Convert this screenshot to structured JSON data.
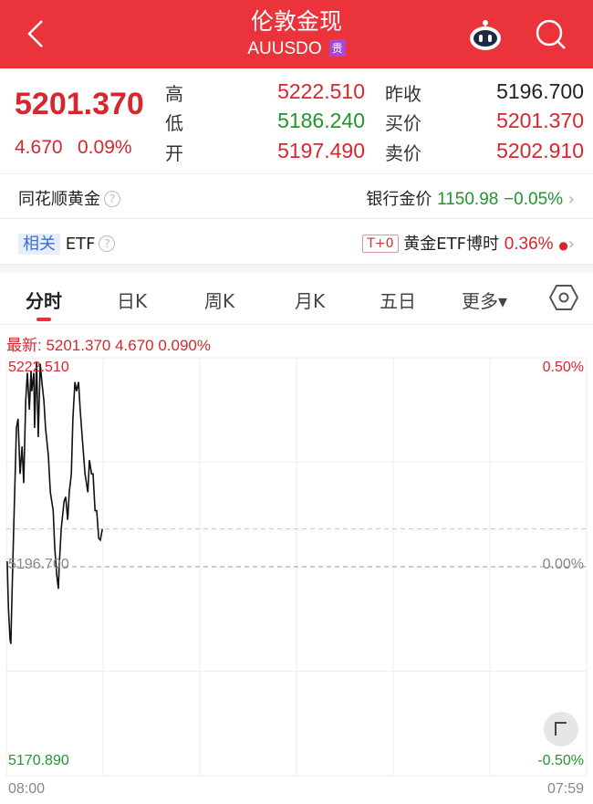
{
  "header": {
    "title": "伦敦金现",
    "code": "AUUSDO",
    "badge": "贵",
    "back_icon": "chevron-left-icon",
    "robot_icon": "robot-assistant-icon",
    "search_icon": "search-icon",
    "bg": "#ea333b"
  },
  "quote": {
    "price": "5201.370",
    "change": "4.670",
    "change_pct": "0.09%",
    "high_label": "高",
    "high": "5222.510",
    "low_label": "低",
    "low": "5186.240",
    "open_label": "开",
    "open": "5197.490",
    "prev_close_label": "昨收",
    "prev_close": "5196.700",
    "bid_label": "买价",
    "bid": "5201.370",
    "ask_label": "卖价",
    "ask": "5202.910"
  },
  "gold_row": {
    "label": "同花顺黄金",
    "help": "?",
    "bank_label": "银行金价",
    "bank_price": "1150.98",
    "bank_change": "−0.05%"
  },
  "etf_row": {
    "tag": "相关",
    "label": "ETF",
    "help": "?",
    "t0": "T+0",
    "etf_name": "黄金ETF博时",
    "etf_change": "0.36%"
  },
  "tabs": [
    {
      "label": "分时",
      "active": true
    },
    {
      "label": "日K"
    },
    {
      "label": "周K"
    },
    {
      "label": "月K"
    },
    {
      "label": "五日"
    },
    {
      "label": "更多▾"
    }
  ],
  "settings_icon": "hexagon-settings-icon",
  "latest": {
    "text": "最新: 5201.370  4.670  0.090%"
  },
  "chart_data": {
    "type": "line",
    "y_max_label": "5222.510",
    "y_mid_label": "5196.700",
    "y_min_label": "5170.890",
    "pct_max_label": "0.50%",
    "pct_mid_label": "0.00%",
    "pct_min_label": "-0.50%",
    "x_start_label": "08:00",
    "x_end_label": "07:59",
    "ylim": [
      5170.89,
      5222.51
    ],
    "baseline": 5196.7,
    "latest": 5201.37,
    "x": [
      "08:02",
      "08:05",
      "08:09",
      "08:11",
      "08:14",
      "08:18",
      "08:23",
      "08:25",
      "08:29",
      "08:34",
      "08:39",
      "08:43",
      "08:48",
      "08:52",
      "08:57",
      "09:01",
      "09:03",
      "09:08",
      "09:10",
      "09:15",
      "09:19",
      "09:24",
      "09:28",
      "09:33",
      "09:37",
      "09:44",
      "09:49",
      "09:56",
      "10:00",
      "10:05",
      "10:09",
      "10:11",
      "10:16",
      "10:23",
      "10:27",
      "10:32",
      "10:36",
      "10:41",
      "10:45",
      "10:50",
      "10:54",
      "10:59",
      "11:03",
      "11:08",
      "11:15",
      "11:22",
      "11:26",
      "11:31",
      "11:35",
      "11:40",
      "11:44",
      "11:49",
      "11:53",
      "11:58"
    ],
    "values": [
      5197.38,
      5191.71,
      5187.74,
      5187.17,
      5193.41,
      5201.35,
      5210.43,
      5213.83,
      5214.97,
      5208.16,
      5211.56,
      5207.02,
      5217.23,
      5220.64,
      5216.1,
      5220.86,
      5218.37,
      5220.64,
      5213.83,
      5222.0,
      5212.7,
      5221.77,
      5219.5,
      5217.23,
      5213.83,
      5210.43,
      5205.89,
      5203.62,
      5199.08,
      5195.68,
      5193.98,
      5196.81,
      5201.35,
      5204.75,
      5205.32,
      5202.49,
      5205.89,
      5208.16,
      5214.97,
      5219.5,
      5218.37,
      5219.5,
      5216.1,
      5212.7,
      5208.16,
      5205.89,
      5209.86,
      5208.16,
      5208.16,
      5203.62,
      5203.62,
      5200.22,
      5199.99,
      5201.37
    ],
    "grid": true,
    "line_color": "#111111"
  }
}
